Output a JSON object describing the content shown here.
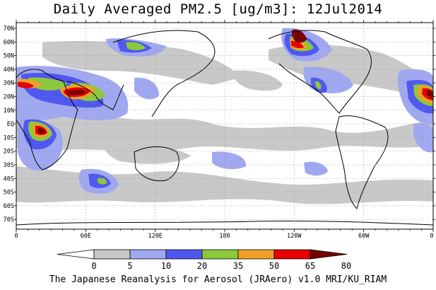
{
  "title": "Daily Averaged PM2.5 [ug/m3]: 12Jul2014",
  "credit": "The Japanese Reanalysis for Aerosol (JRAero) v1.0 MRI/KU_RIAM",
  "lat_labels": [
    "70N",
    "60N",
    "50N",
    "40N",
    "30N",
    "20N",
    "10N",
    "EQ",
    "10S",
    "20S",
    "30S",
    "40S",
    "50S",
    "60S",
    "70S"
  ],
  "lon_labels": [
    "0",
    "60E",
    "120E",
    "180",
    "120W",
    "60W",
    "0"
  ],
  "colorbar": {
    "labels": [
      "0",
      "5",
      "10",
      "20",
      "35",
      "50",
      "65",
      "80"
    ],
    "colors": [
      "#ffffff",
      "#c8c8c8",
      "#a0a8f0",
      "#5058f0",
      "#8cc83c",
      "#f0a028",
      "#e60000",
      "#780000"
    ]
  }
}
